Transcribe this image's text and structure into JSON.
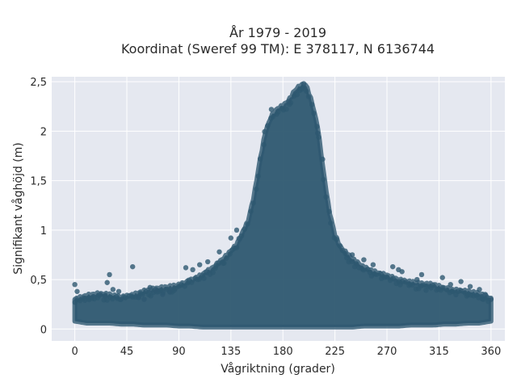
{
  "chart_data": {
    "type": "scatter",
    "title": [
      "År 1979 - 2019",
      "Koordinat (Sweref 99 TM): E 378117, N 6136744"
    ],
    "xlabel": "Vågriktning (grader)",
    "ylabel": "Signifikant våghöjd (m)",
    "xlim": [
      -20,
      372
    ],
    "ylim": [
      -0.12,
      2.55
    ],
    "x_ticks": [
      0,
      45,
      90,
      135,
      180,
      225,
      270,
      315,
      360
    ],
    "x_tick_labels": [
      "0",
      "45",
      "90",
      "135",
      "180",
      "225",
      "270",
      "315",
      "360"
    ],
    "y_ticks": [
      0,
      0.5,
      1,
      1.5,
      2,
      2.5
    ],
    "y_tick_labels": [
      "0",
      "0,5",
      "1",
      "1,5",
      "2",
      "2,5"
    ],
    "grid": true,
    "marker_color": "#2e5870",
    "background_color": "#e5e8f0",
    "envelope": {
      "direction": [
        0,
        10,
        20,
        30,
        40,
        50,
        60,
        70,
        80,
        90,
        100,
        110,
        120,
        130,
        140,
        150,
        155,
        160,
        165,
        170,
        175,
        180,
        185,
        190,
        195,
        200,
        205,
        210,
        215,
        220,
        225,
        230,
        240,
        250,
        260,
        270,
        280,
        290,
        300,
        310,
        320,
        330,
        340,
        350,
        360
      ],
      "upper": [
        0.3,
        0.33,
        0.35,
        0.35,
        0.33,
        0.35,
        0.38,
        0.4,
        0.42,
        0.45,
        0.5,
        0.55,
        0.62,
        0.72,
        0.85,
        1.1,
        1.35,
        1.7,
        2.0,
        2.15,
        2.22,
        2.25,
        2.3,
        2.4,
        2.46,
        2.47,
        2.3,
        2.05,
        1.6,
        1.2,
        0.95,
        0.82,
        0.7,
        0.62,
        0.58,
        0.55,
        0.5,
        0.47,
        0.45,
        0.45,
        0.42,
        0.4,
        0.38,
        0.35,
        0.3
      ],
      "lower": [
        0.08,
        0.06,
        0.06,
        0.06,
        0.05,
        0.05,
        0.04,
        0.04,
        0.04,
        0.03,
        0.03,
        0.02,
        0.02,
        0.02,
        0.02,
        0.02,
        0.02,
        0.02,
        0.02,
        0.02,
        0.02,
        0.02,
        0.02,
        0.02,
        0.02,
        0.02,
        0.02,
        0.02,
        0.02,
        0.02,
        0.02,
        0.02,
        0.02,
        0.03,
        0.03,
        0.03,
        0.03,
        0.04,
        0.04,
        0.04,
        0.05,
        0.05,
        0.06,
        0.06,
        0.08
      ]
    },
    "outliers": [
      {
        "x": 0,
        "y": 0.45
      },
      {
        "x": 2,
        "y": 0.38
      },
      {
        "x": 22,
        "y": 0.35
      },
      {
        "x": 26,
        "y": 0.33
      },
      {
        "x": 28,
        "y": 0.47
      },
      {
        "x": 30,
        "y": 0.55
      },
      {
        "x": 33,
        "y": 0.4
      },
      {
        "x": 38,
        "y": 0.38
      },
      {
        "x": 40,
        "y": 0.3
      },
      {
        "x": 50,
        "y": 0.63
      },
      {
        "x": 55,
        "y": 0.32
      },
      {
        "x": 60,
        "y": 0.3
      },
      {
        "x": 65,
        "y": 0.42
      },
      {
        "x": 70,
        "y": 0.4
      },
      {
        "x": 76,
        "y": 0.35
      },
      {
        "x": 82,
        "y": 0.38
      },
      {
        "x": 96,
        "y": 0.62
      },
      {
        "x": 102,
        "y": 0.6
      },
      {
        "x": 108,
        "y": 0.65
      },
      {
        "x": 115,
        "y": 0.68
      },
      {
        "x": 125,
        "y": 0.78
      },
      {
        "x": 135,
        "y": 0.92
      },
      {
        "x": 140,
        "y": 1.0
      },
      {
        "x": 170,
        "y": 2.22
      },
      {
        "x": 185,
        "y": 2.3
      },
      {
        "x": 198,
        "y": 2.48
      },
      {
        "x": 210,
        "y": 1.98
      },
      {
        "x": 240,
        "y": 0.75
      },
      {
        "x": 250,
        "y": 0.7
      },
      {
        "x": 258,
        "y": 0.65
      },
      {
        "x": 275,
        "y": 0.63
      },
      {
        "x": 280,
        "y": 0.6
      },
      {
        "x": 283,
        "y": 0.58
      },
      {
        "x": 296,
        "y": 0.5
      },
      {
        "x": 300,
        "y": 0.55
      },
      {
        "x": 318,
        "y": 0.52
      },
      {
        "x": 325,
        "y": 0.45
      },
      {
        "x": 334,
        "y": 0.48
      },
      {
        "x": 342,
        "y": 0.43
      },
      {
        "x": 350,
        "y": 0.4
      },
      {
        "x": 355,
        "y": 0.35
      },
      {
        "x": 360,
        "y": 0.3
      }
    ]
  }
}
